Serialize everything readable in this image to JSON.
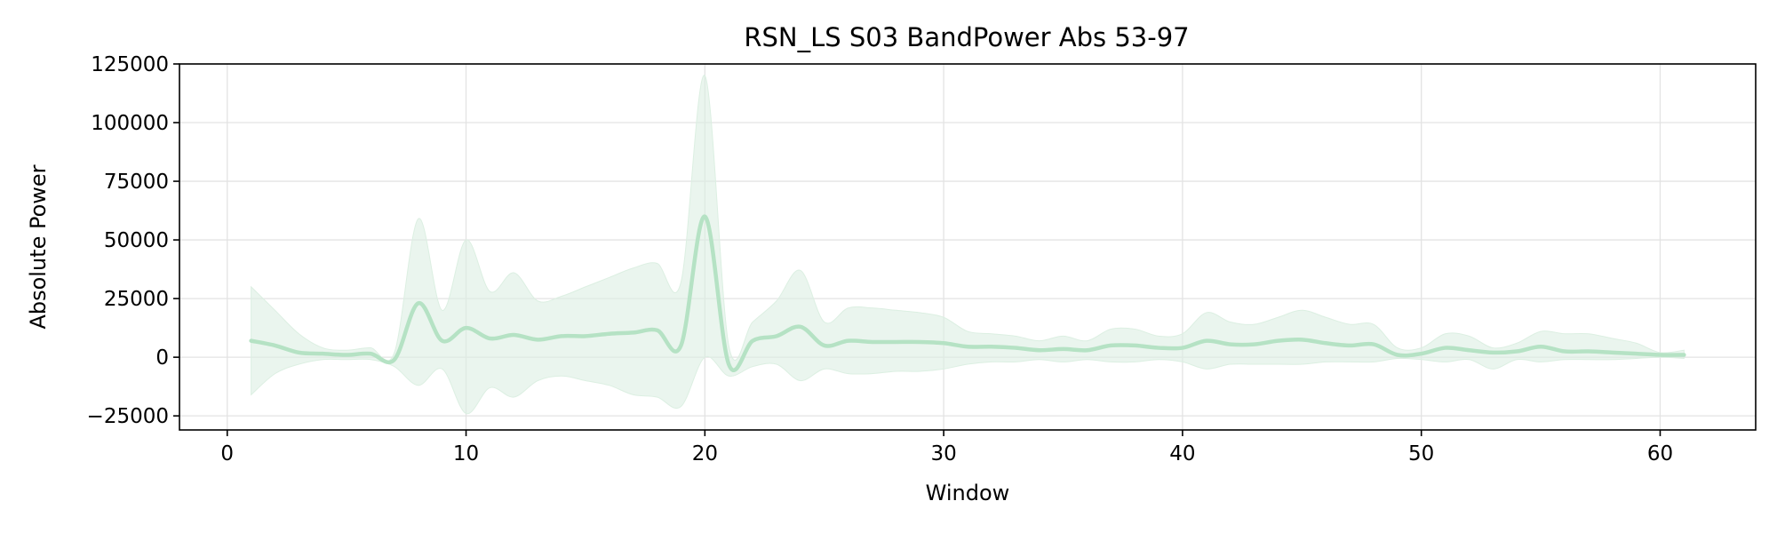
{
  "chart_data": {
    "type": "line",
    "title": "RSN_LS S03 BandPower Abs 53-97",
    "xlabel": "Window",
    "ylabel": "Absolute Power",
    "xlim": [
      -2,
      64
    ],
    "ylim": [
      -31000,
      125000
    ],
    "grid": true,
    "legend": "none",
    "x_ticks": [
      0,
      10,
      20,
      30,
      40,
      50,
      60
    ],
    "y_ticks": [
      -25000,
      0,
      25000,
      50000,
      75000,
      100000,
      125000
    ],
    "x_tick_labels": [
      "0",
      "10",
      "20",
      "30",
      "40",
      "50",
      "60"
    ],
    "y_tick_labels": [
      "−25000",
      "0",
      "25000",
      "50000",
      "75000",
      "100000",
      "125000"
    ],
    "colors": {
      "line": "#b5e2c4",
      "band": "#dcefe2"
    },
    "x": [
      1,
      2,
      3,
      4,
      5,
      6,
      7,
      8,
      9,
      10,
      11,
      12,
      13,
      14,
      15,
      16,
      17,
      18,
      19,
      20,
      21,
      22,
      23,
      24,
      25,
      26,
      27,
      28,
      29,
      30,
      31,
      32,
      33,
      34,
      35,
      36,
      37,
      38,
      39,
      40,
      41,
      42,
      43,
      44,
      45,
      46,
      47,
      48,
      49,
      50,
      51,
      52,
      53,
      54,
      55,
      56,
      57,
      58,
      59,
      60,
      61
    ],
    "series": [
      {
        "mean": [
          7000,
          5000,
          2000,
          1500,
          1000,
          1500,
          -1000,
          23000,
          7000,
          12500,
          8000,
          9500,
          7500,
          9000,
          9000,
          10000,
          10500,
          11500,
          5000,
          60000,
          -3000,
          7000,
          9000,
          13000,
          5000,
          7000,
          6500,
          6500,
          6500,
          6000,
          4500,
          4500,
          4000,
          3000,
          3500,
          3000,
          5000,
          5000,
          4000,
          4000,
          7000,
          5500,
          5500,
          7000,
          7500,
          6000,
          5000,
          5500,
          1000,
          1500,
          4000,
          3000,
          2000,
          2500,
          4500,
          2500,
          2500,
          2000,
          1500,
          1000,
          1000
        ],
        "upper": [
          30000,
          20000,
          10000,
          4000,
          3000,
          4000,
          2000,
          59000,
          20000,
          50000,
          28000,
          36000,
          24000,
          26000,
          30000,
          34000,
          38000,
          40000,
          32000,
          120000,
          5000,
          15000,
          24000,
          37000,
          15000,
          21000,
          21000,
          20000,
          19000,
          17000,
          11000,
          10000,
          9000,
          7000,
          9000,
          7000,
          12000,
          12000,
          9000,
          10000,
          19000,
          15000,
          14000,
          17000,
          20000,
          17000,
          14000,
          14000,
          4000,
          4000,
          10000,
          9000,
          4000,
          6000,
          11000,
          10000,
          10000,
          8000,
          6000,
          2000,
          3000
        ],
        "lower": [
          -16000,
          -7000,
          -3000,
          -1000,
          -1000,
          -1000,
          -4000,
          -12000,
          -5000,
          -24000,
          -13000,
          -17000,
          -10000,
          -8000,
          -10000,
          -12000,
          -16000,
          -17000,
          -21000,
          0,
          -8000,
          -4000,
          -3000,
          -10000,
          -5000,
          -7000,
          -7000,
          -6000,
          -6000,
          -5000,
          -3000,
          -2000,
          -2000,
          -1000,
          -2000,
          -1000,
          -2000,
          -2000,
          -1000,
          -2000,
          -5000,
          -3000,
          -3000,
          -3000,
          -3000,
          -2000,
          -2000,
          -2000,
          -500,
          -1000,
          -2000,
          -1000,
          -5000,
          -1000,
          -2000,
          -1000,
          -1000,
          -1000,
          -500,
          0,
          -500
        ]
      }
    ]
  }
}
